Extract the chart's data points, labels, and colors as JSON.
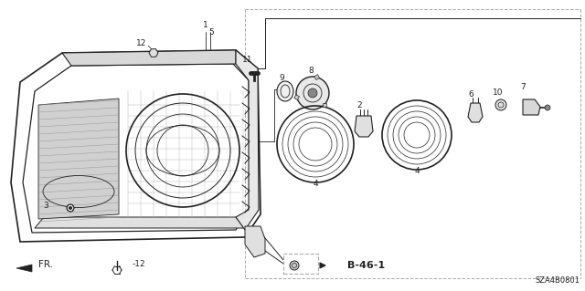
{
  "bg_color": "#ffffff",
  "lc": "#222222",
  "title_code": "SZA4B0801",
  "dashed_color": "#aaaaaa"
}
